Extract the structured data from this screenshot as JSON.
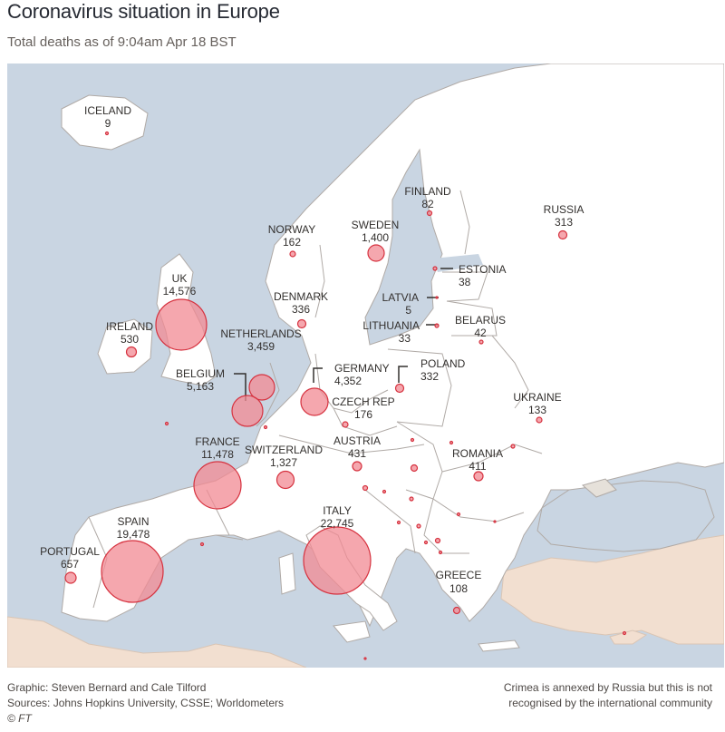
{
  "header": {
    "title": "Coronavirus situation in Europe",
    "subtitle": "Total deaths as of 9:04am Apr 18 BST"
  },
  "colors": {
    "sea": "#c9d5e2",
    "land": "#ffffff",
    "non_europe_land": "#f2dfd0",
    "border": "#b0aaa6",
    "bubble_fill": "#f28a93",
    "bubble_stroke": "#d6323f"
  },
  "countries": [
    {
      "name": "ICELAND",
      "deaths": "9"
    },
    {
      "name": "FINLAND",
      "deaths": "82"
    },
    {
      "name": "RUSSIA",
      "deaths": "313"
    },
    {
      "name": "NORWAY",
      "deaths": "162"
    },
    {
      "name": "SWEDEN",
      "deaths": "1,400"
    },
    {
      "name": "ESTONIA",
      "deaths": "38"
    },
    {
      "name": "UK",
      "deaths": "14,576"
    },
    {
      "name": "DENMARK",
      "deaths": "336"
    },
    {
      "name": "LATVIA",
      "deaths": "5"
    },
    {
      "name": "IRELAND",
      "deaths": "530"
    },
    {
      "name": "NETHERLANDS",
      "deaths": "3,459"
    },
    {
      "name": "LITHUANIA",
      "deaths": "33"
    },
    {
      "name": "BELARUS",
      "deaths": "42"
    },
    {
      "name": "BELGIUM",
      "deaths": "5,163"
    },
    {
      "name": "GERMANY",
      "deaths": "4,352"
    },
    {
      "name": "POLAND",
      "deaths": "332"
    },
    {
      "name": "CZECH REP",
      "deaths": "176"
    },
    {
      "name": "UKRAINE",
      "deaths": "133"
    },
    {
      "name": "FRANCE",
      "deaths": "11,478"
    },
    {
      "name": "AUSTRIA",
      "deaths": "431"
    },
    {
      "name": "SWITZERLAND",
      "deaths": "1,327"
    },
    {
      "name": "ROMANIA",
      "deaths": "411"
    },
    {
      "name": "SPAIN",
      "deaths": "19,478"
    },
    {
      "name": "ITALY",
      "deaths": "22,745"
    },
    {
      "name": "PORTUGAL",
      "deaths": "657"
    },
    {
      "name": "GREECE",
      "deaths": "108"
    }
  ],
  "footer": {
    "credit": "Graphic: Steven Bernard and Cale Tilford",
    "sources": "Sources: Johns Hopkins University, CSSE; Worldometers",
    "copyright": "© FT",
    "note_line1": "Crimea is annexed by Russia but this is not",
    "note_line2": "recognised by the international community"
  }
}
